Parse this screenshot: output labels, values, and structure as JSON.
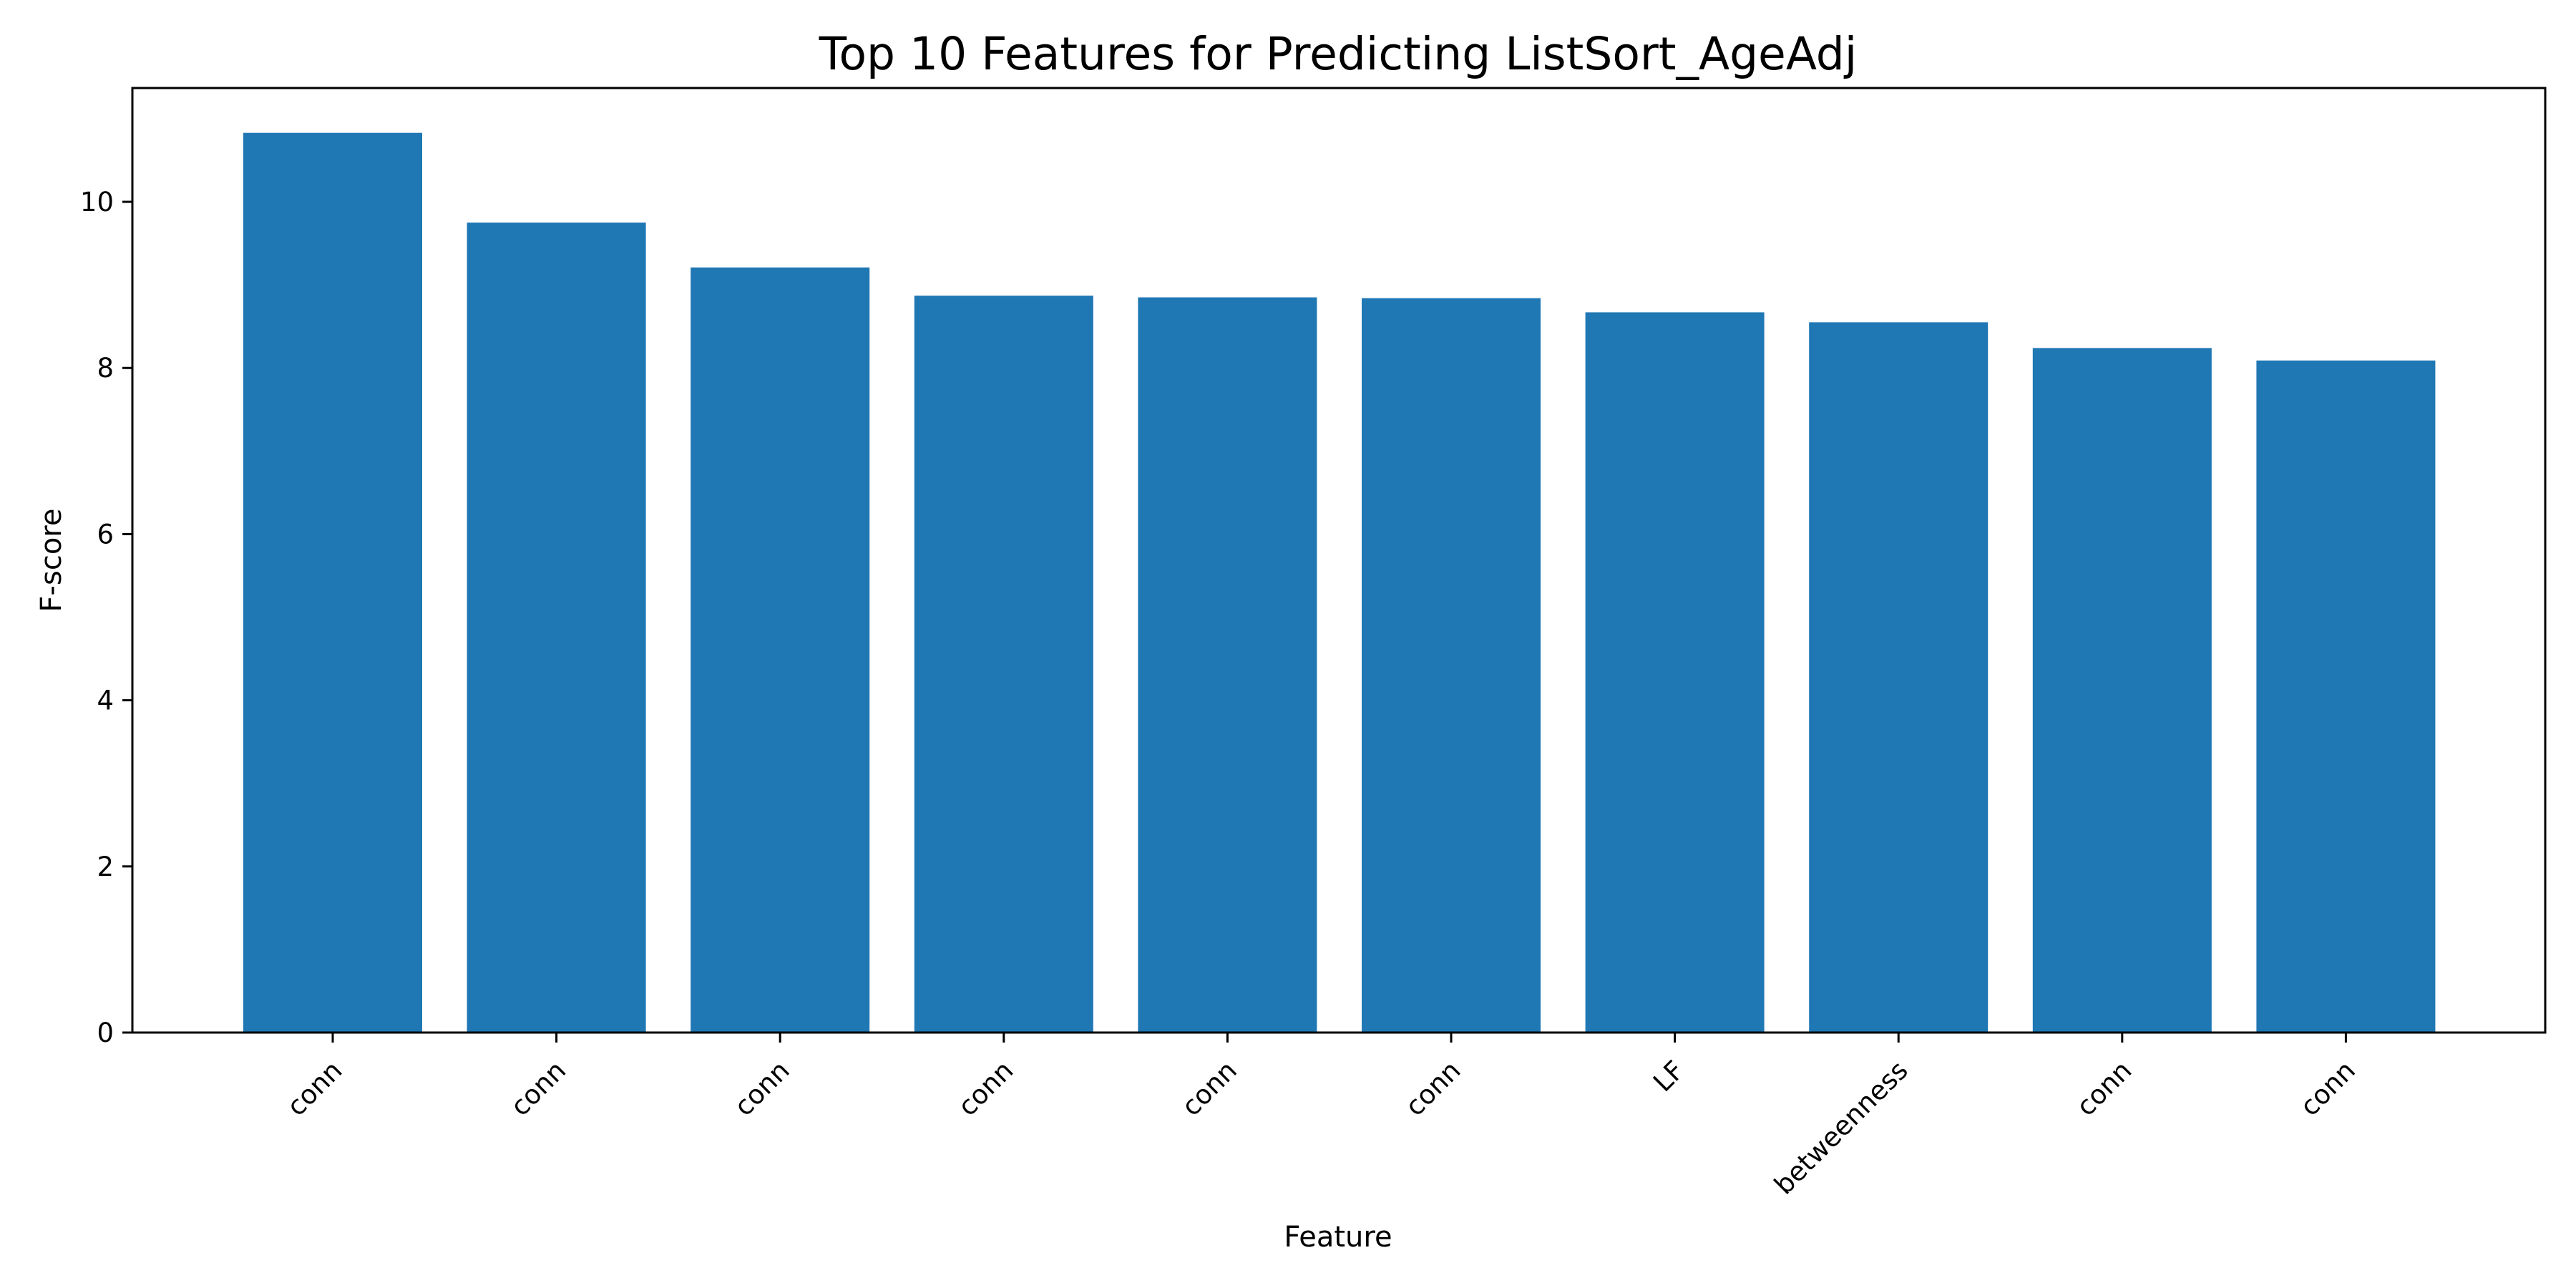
{
  "chart_data": {
    "type": "bar",
    "title": "Top 10 Features for Predicting ListSort_AgeAdj",
    "xlabel": "Feature",
    "ylabel": "F-score",
    "categories": [
      "conn",
      "conn",
      "conn",
      "conn",
      "conn",
      "conn",
      "LF",
      "betweenness",
      "conn",
      "conn"
    ],
    "values": [
      10.83,
      9.75,
      9.21,
      8.87,
      8.85,
      8.84,
      8.67,
      8.55,
      8.24,
      8.09
    ],
    "ylim": [
      0,
      11.37
    ],
    "yticks": [
      0,
      2,
      4,
      6,
      8,
      10
    ],
    "grid": false,
    "bar_color": "#1f77b4"
  }
}
